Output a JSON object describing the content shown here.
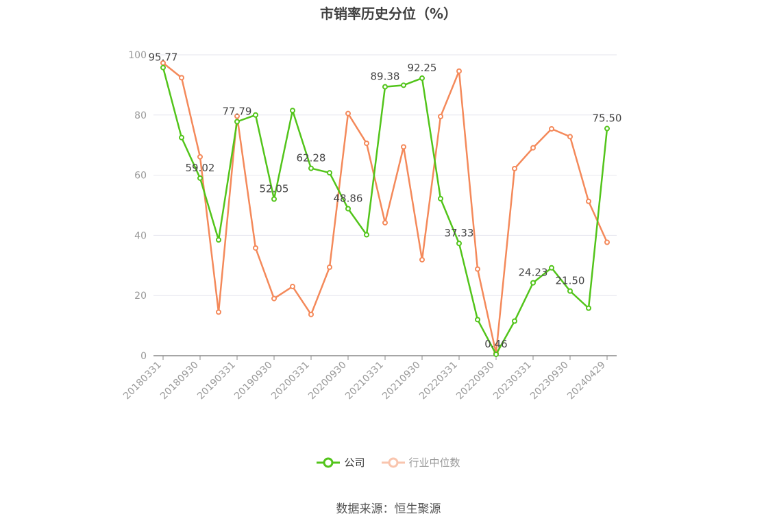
{
  "chart_data": {
    "type": "line",
    "title": "市销率历史分位（%）",
    "ylim": [
      0,
      100
    ],
    "yticks": [
      0,
      20,
      40,
      60,
      80,
      100
    ],
    "x": [
      "20180331",
      "20180630",
      "20180930",
      "20181231",
      "20190331",
      "20190630",
      "20190930",
      "20191231",
      "20200331",
      "20200630",
      "20200930",
      "20201231",
      "20210331",
      "20210630",
      "20210930",
      "20211231",
      "20220331",
      "20220630",
      "20220930",
      "20221231",
      "20230331",
      "20230630",
      "20230930",
      "20231231",
      "20240429"
    ],
    "xtick_labels": [
      "20180331",
      "20180930",
      "20190331",
      "20190930",
      "20200331",
      "20200930",
      "20210331",
      "20210930",
      "20220331",
      "20220930",
      "20230331",
      "20230930",
      "20240429"
    ],
    "xtick_indices": [
      0,
      2,
      4,
      6,
      8,
      10,
      12,
      14,
      16,
      18,
      20,
      22,
      24
    ],
    "series": [
      {
        "name": "公司",
        "color": "#52c41a",
        "values": [
          95.77,
          72.5,
          59.02,
          38.5,
          77.79,
          80.0,
          52.05,
          81.5,
          62.28,
          60.8,
          48.86,
          40.2,
          89.38,
          89.9,
          92.25,
          52.2,
          37.33,
          12.0,
          0.46,
          11.5,
          24.23,
          29.2,
          21.5,
          15.8,
          75.5
        ],
        "labels": {
          "0": "95.77",
          "2": "59.02",
          "4": "77.79",
          "6": "52.05",
          "8": "62.28",
          "10": "48.86",
          "12": "89.38",
          "14": "92.25",
          "16": "37.33",
          "18": "0.46",
          "20": "24.23",
          "22": "21.50",
          "24": "75.50"
        }
      },
      {
        "name": "行业中位数",
        "color": "#f4895a",
        "values": [
          97.3,
          92.4,
          66.1,
          14.5,
          79.6,
          35.8,
          19.0,
          23.0,
          13.7,
          29.4,
          80.5,
          70.6,
          44.2,
          69.4,
          31.9,
          79.5,
          94.6,
          28.8,
          0.8,
          62.2,
          69.1,
          75.4,
          72.8,
          51.3,
          37.7
        ]
      }
    ],
    "legend_position": "bottom-center",
    "grid": true
  },
  "source_text": "数据来源：恒生聚源"
}
